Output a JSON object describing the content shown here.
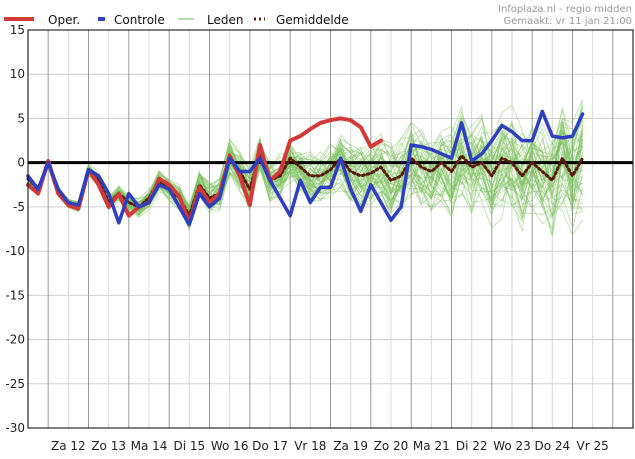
{
  "chart_data": {
    "type": "line",
    "credit": {
      "line1": "Infoplaza.nl - regio midden",
      "line2": "Gemaakt: vr 11 jan 21:00"
    },
    "legend": [
      {
        "label": "Oper.",
        "color": "#d23a3a"
      },
      {
        "label": "Controle",
        "color": "#2e3fbf"
      },
      {
        "label": "Leden",
        "color": "#9fd48a"
      },
      {
        "label": "Gemiddelde",
        "color": "#5a1a0a"
      }
    ],
    "ylim": [
      -30,
      15
    ],
    "yticks": [
      15,
      10,
      5,
      0,
      -5,
      -10,
      -15,
      -20,
      -25,
      -30
    ],
    "xlim": [
      0,
      60
    ],
    "xticks": [
      {
        "x": 4,
        "label": "Za 12"
      },
      {
        "x": 8,
        "label": "Zo 13"
      },
      {
        "x": 12,
        "label": "Ma 14"
      },
      {
        "x": 16,
        "label": "Di 15"
      },
      {
        "x": 20,
        "label": "Wo 16"
      },
      {
        "x": 24,
        "label": "Do 17"
      },
      {
        "x": 28,
        "label": "Vr 18"
      },
      {
        "x": 32,
        "label": "Za 19"
      },
      {
        "x": 36,
        "label": "Zo 20"
      },
      {
        "x": 40,
        "label": "Ma 21"
      },
      {
        "x": 44,
        "label": "Di 22"
      },
      {
        "x": 48,
        "label": "Wo 23"
      },
      {
        "x": 52,
        "label": "Do 24"
      },
      {
        "x": 56,
        "label": "Vr 25"
      }
    ],
    "zero_line": 0,
    "series": [
      {
        "name": "Oper.",
        "color": "#d23a3a",
        "x": [
          0,
          1,
          2,
          3,
          4,
          5,
          6,
          7,
          8,
          9,
          10,
          11,
          12,
          13,
          14,
          15,
          16,
          17,
          18,
          19,
          20,
          21,
          22,
          23,
          24,
          25,
          26,
          27,
          28,
          29,
          30,
          31,
          32,
          33,
          34,
          35,
          36,
          37,
          38,
          39,
          40
        ],
        "values": [
          -2.5,
          -3.5,
          0.2,
          -3.5,
          -4.8,
          -5.2,
          -0.8,
          -2.5,
          -5.0,
          -3.5,
          -6.0,
          -5.0,
          -4.5,
          -1.8,
          -2.5,
          -3.8,
          -6.8,
          -2.8,
          -4.5,
          -3.5,
          0.8,
          -1.5,
          -4.8,
          2.0,
          -2.0,
          -1.0,
          2.5,
          3.0,
          3.8,
          4.5,
          4.8,
          5.0,
          4.8,
          4.0,
          1.8,
          2.5,
          null,
          null,
          null,
          null,
          null
        ]
      },
      {
        "name": "Controle",
        "color": "#2e3fbf",
        "x": [
          0,
          1,
          2,
          3,
          4,
          5,
          6,
          7,
          8,
          9,
          10,
          11,
          12,
          13,
          14,
          15,
          16,
          17,
          18,
          19,
          20,
          21,
          22,
          23,
          24,
          25,
          26,
          27,
          28,
          29,
          30,
          31,
          32,
          33,
          34,
          35,
          36,
          37,
          38,
          39,
          40,
          41,
          42,
          43,
          44,
          45,
          46,
          47,
          48,
          49,
          50,
          51,
          52,
          53,
          54,
          55,
          56,
          57,
          58,
          59,
          60
        ],
        "values": [
          -1.5,
          -3.0,
          0.0,
          -3.0,
          -4.5,
          -4.8,
          -0.8,
          -1.5,
          -3.5,
          -6.8,
          -3.5,
          -5.0,
          -4.5,
          -2.5,
          -3.0,
          -5.0,
          -7.0,
          -3.5,
          -5.0,
          -4.0,
          0.5,
          -1.0,
          -1.0,
          0.5,
          -2.0,
          -4.0,
          -6.0,
          -2.0,
          -4.5,
          -2.8,
          -2.8,
          0.5,
          -3.0,
          -5.5,
          -2.5,
          -4.5,
          -6.5,
          -5.0,
          2.0,
          1.8,
          1.5,
          1.0,
          0.5,
          4.5,
          0.2,
          1.0,
          2.5,
          4.2,
          3.5,
          2.5,
          2.5,
          5.8,
          3.0,
          2.8,
          3.0,
          5.5,
          null,
          null,
          null,
          null,
          null
        ]
      },
      {
        "name": "Gemiddelde",
        "color": "#5a1a0a",
        "x": [
          0,
          1,
          2,
          3,
          4,
          5,
          6,
          7,
          8,
          9,
          10,
          11,
          12,
          13,
          14,
          15,
          16,
          17,
          18,
          19,
          20,
          21,
          22,
          23,
          24,
          25,
          26,
          27,
          28,
          29,
          30,
          31,
          32,
          33,
          34,
          35,
          36,
          37,
          38,
          39,
          40,
          41,
          42,
          43,
          44,
          45,
          46,
          47,
          48,
          49,
          50,
          51,
          52,
          53,
          54,
          55,
          56,
          57,
          58,
          59,
          60
        ],
        "values": [
          -1.8,
          -3.0,
          0.0,
          -3.2,
          -4.6,
          -5.0,
          -0.8,
          -2.0,
          -4.5,
          -3.5,
          -4.5,
          -5.0,
          -4.0,
          -2.0,
          -3.0,
          -4.0,
          -6.0,
          -2.5,
          -4.0,
          -3.5,
          0.5,
          -1.0,
          -3.0,
          1.0,
          -2.0,
          -1.5,
          0.5,
          -0.5,
          -1.5,
          -1.5,
          -0.8,
          0.5,
          -1.0,
          -1.5,
          -1.2,
          -0.5,
          -2.0,
          -1.5,
          0.5,
          -0.5,
          -1.0,
          0.0,
          -1.0,
          0.8,
          -0.5,
          0.0,
          -1.5,
          0.5,
          0.0,
          -1.5,
          0.0,
          -1.0,
          -2.0,
          0.5,
          -1.5,
          0.5,
          null,
          null,
          null,
          null,
          null
        ]
      }
    ]
  }
}
